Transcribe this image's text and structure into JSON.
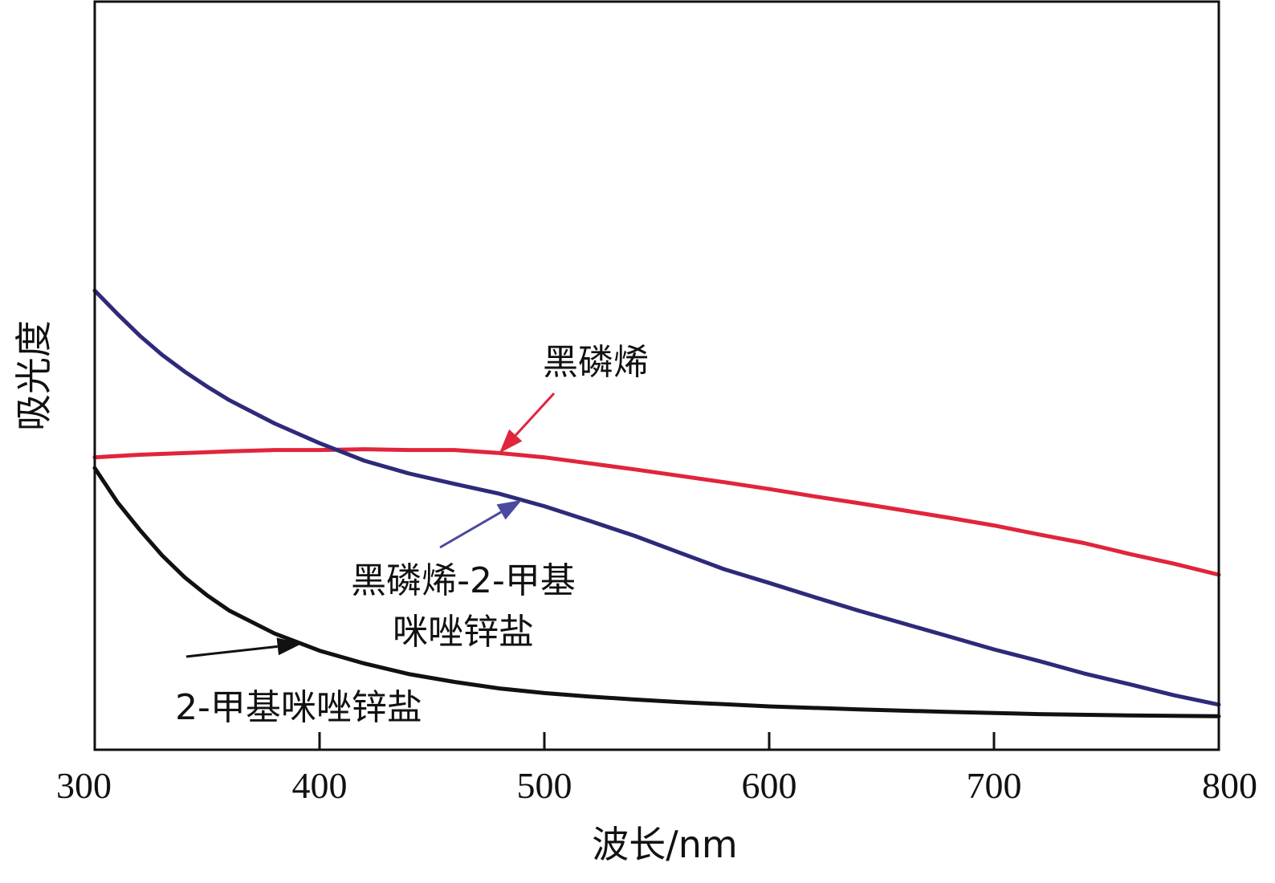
{
  "chart_data": {
    "type": "line",
    "xlabel": "波长/nm",
    "ylabel": "吸光度",
    "xlim": [
      300,
      800
    ],
    "ylim": [
      0,
      1
    ],
    "xticks": [
      300,
      400,
      500,
      600,
      700,
      800
    ],
    "grid": false,
    "series": [
      {
        "name": "黑磷烯",
        "color": "#e0253c",
        "x": [
          300,
          320,
          340,
          360,
          380,
          400,
          420,
          440,
          460,
          480,
          500,
          520,
          540,
          560,
          580,
          600,
          620,
          640,
          660,
          680,
          700,
          720,
          740,
          760,
          780,
          800
        ],
        "y": [
          0.611,
          0.617,
          0.621,
          0.625,
          0.628,
          0.628,
          0.63,
          0.628,
          0.628,
          0.621,
          0.611,
          0.597,
          0.583,
          0.568,
          0.553,
          0.537,
          0.52,
          0.504,
          0.487,
          0.47,
          0.452,
          0.431,
          0.411,
          0.386,
          0.363,
          0.337
        ]
      },
      {
        "name": "黑磷烯-2-甲基咪唑锌盐",
        "color": "#2e2a7a",
        "x": [
          300,
          310,
          320,
          330,
          340,
          350,
          360,
          380,
          400,
          420,
          440,
          460,
          480,
          500,
          520,
          540,
          560,
          580,
          600,
          620,
          640,
          660,
          680,
          700,
          720,
          740,
          760,
          780,
          800
        ],
        "y": [
          1.0,
          0.946,
          0.895,
          0.85,
          0.811,
          0.776,
          0.744,
          0.69,
          0.644,
          0.603,
          0.573,
          0.549,
          0.526,
          0.497,
          0.463,
          0.428,
          0.389,
          0.35,
          0.318,
          0.285,
          0.253,
          0.223,
          0.193,
          0.163,
          0.136,
          0.107,
          0.082,
          0.056,
          0.034
        ]
      },
      {
        "name": "2-甲基咪唑锌盐",
        "color": "#111111",
        "x": [
          300,
          310,
          320,
          330,
          340,
          350,
          360,
          380,
          400,
          420,
          440,
          460,
          480,
          500,
          520,
          540,
          560,
          580,
          600,
          640,
          680,
          720,
          760,
          800
        ],
        "y": [
          0.586,
          0.507,
          0.442,
          0.382,
          0.331,
          0.289,
          0.253,
          0.2,
          0.16,
          0.13,
          0.105,
          0.087,
          0.072,
          0.061,
          0.053,
          0.046,
          0.04,
          0.035,
          0.03,
          0.023,
          0.017,
          0.012,
          0.009,
          0.007
        ]
      }
    ],
    "annotations": [
      {
        "lines": [
          "黑磷烯"
        ],
        "target_x": 480,
        "series": 0,
        "color": "#e0253c"
      },
      {
        "lines": [
          "黑磷烯-2-甲基",
          "咪唑锌盐"
        ],
        "target_x": 490,
        "series": 1,
        "color": "#4a4aa0"
      },
      {
        "lines": [
          "2-甲基咪唑锌盐"
        ],
        "target_x": 392,
        "series": 2,
        "color": "#111111"
      }
    ]
  }
}
